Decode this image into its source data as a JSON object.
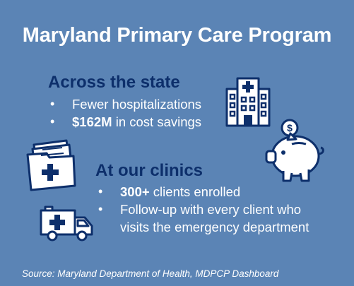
{
  "title": "Maryland Primary Care Program",
  "state_section": {
    "heading": "Across the state",
    "bullets": [
      {
        "bold": "",
        "text": "Fewer hospitalizations"
      },
      {
        "bold": "$162M",
        "text": " in cost savings"
      }
    ]
  },
  "clinic_section": {
    "heading": "At our clinics",
    "bullets": [
      {
        "bold": "300+",
        "text": " clients enrolled"
      },
      {
        "bold": "",
        "text": "Follow-up with every client who visits the emergency department"
      }
    ]
  },
  "bullet_glyph": "•",
  "source": "Source: Maryland Department of Health, MDPCP Dashboard",
  "icons": {
    "hospital": "hospital-building-icon",
    "piggy_bank": "piggy-bank-icon",
    "folder": "medical-folder-icon",
    "ambulance": "ambulance-icon",
    "coin_symbol": "$"
  },
  "colors": {
    "background": "#5b84b5",
    "heading": "#0d2f6b",
    "icon_outline": "#0d2f6b",
    "text": "#ffffff"
  }
}
